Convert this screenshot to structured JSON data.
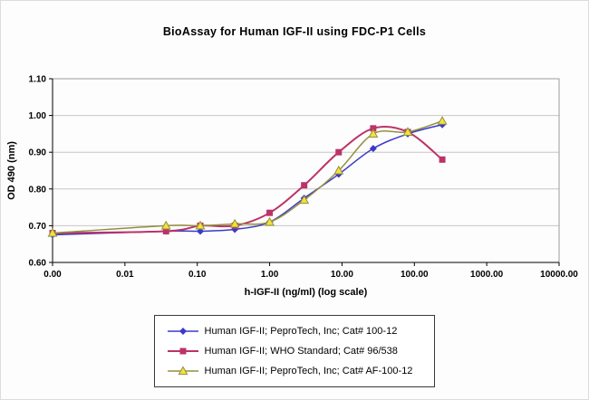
{
  "chart_data": {
    "type": "line",
    "title": "BioAssay for Human IGF-II using FDC-P1 Cells",
    "xlabel": "h-IGF-II (ng/ml) (log scale)",
    "ylabel": "OD 490 (nm)",
    "x_scale": "log",
    "xlim": [
      0.001,
      10000
    ],
    "ylim": [
      0.6,
      1.1
    ],
    "y_ticks": [
      0.6,
      0.7,
      0.8,
      0.9,
      1.0,
      1.1
    ],
    "x_ticks": [
      {
        "value": 0.001,
        "label": "0.00"
      },
      {
        "value": 0.01,
        "label": "0.01"
      },
      {
        "value": 0.1,
        "label": "0.10"
      },
      {
        "value": 1,
        "label": "1.00"
      },
      {
        "value": 10,
        "label": "10.00"
      },
      {
        "value": 100,
        "label": "100.00"
      },
      {
        "value": 1000,
        "label": "1000.00"
      },
      {
        "value": 10000,
        "label": "10000.00"
      }
    ],
    "grid": "horizontal-only",
    "legend_position": "bottom",
    "x": [
      0,
      0.037,
      0.11,
      0.33,
      1,
      3,
      9,
      27,
      81,
      243
    ],
    "series": [
      {
        "name": "Human IGF-II; PeproTech, Inc; Cat# 100-12",
        "color": "#3a3ac8",
        "marker": "diamond",
        "marker_fill": "#3a3ac8",
        "line_width": 1.5,
        "values": [
          0.675,
          0.685,
          0.685,
          0.69,
          0.71,
          0.775,
          0.84,
          0.91,
          0.95,
          0.975
        ]
      },
      {
        "name": "Human IGF-II; WHO Standard; Cat# 96/538",
        "color": "#bb3368",
        "marker": "square",
        "marker_fill": "#bb3368",
        "line_width": 2,
        "values": [
          0.68,
          0.685,
          0.7,
          0.7,
          0.735,
          0.81,
          0.9,
          0.965,
          0.955,
          0.88
        ]
      },
      {
        "name": "Human IGF-II; PeproTech, Inc; Cat# AF-100-12",
        "color": "#948f3e",
        "marker": "triangle",
        "marker_fill": "#f2e23c",
        "line_width": 1.5,
        "values": [
          0.68,
          0.7,
          0.7,
          0.705,
          0.71,
          0.77,
          0.85,
          0.95,
          0.955,
          0.985
        ]
      }
    ]
  }
}
